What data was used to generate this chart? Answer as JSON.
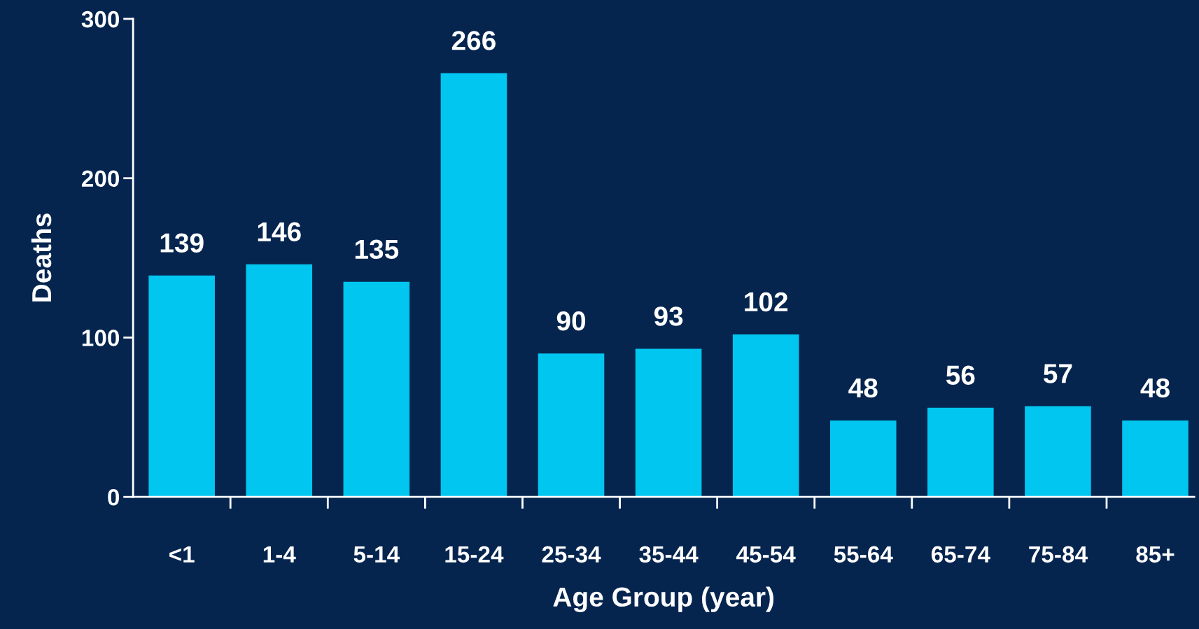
{
  "chart_data": {
    "type": "bar",
    "xlabel": "Age Group (year)",
    "ylabel": "Deaths",
    "categories": [
      "<1",
      "1-4",
      "5-14",
      "15-24",
      "25-34",
      "35-44",
      "45-54",
      "55-64",
      "65-74",
      "75-84",
      "85+"
    ],
    "values": [
      139,
      146,
      135,
      266,
      90,
      93,
      102,
      48,
      56,
      57,
      48
    ],
    "color": "#00c6f0",
    "ylim": [
      0,
      300
    ],
    "yticks": [
      0,
      100,
      200,
      300
    ],
    "data_labels": true,
    "grid": false,
    "legend": false
  }
}
